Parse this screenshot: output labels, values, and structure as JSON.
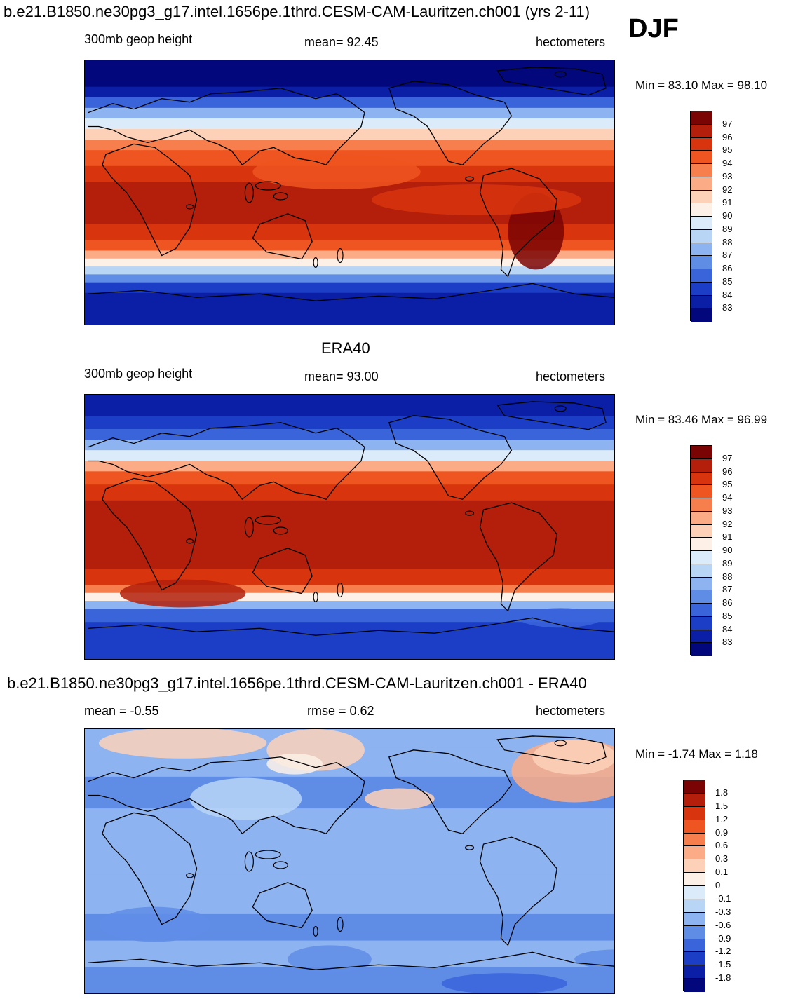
{
  "header": {
    "title": "b.e21.B1850.ne30pg3_g17.intel.1656pe.1thrd.CESM-CAM-Lauritzen.ch001 (yrs 2-11)",
    "season": "DJF"
  },
  "panels": [
    {
      "title": "",
      "left_label": "300mb geop height",
      "center_label": "mean=  92.45",
      "right_label": "hectometers",
      "minmax": "Min =  83.10 Max =  98.10",
      "colorbar": {
        "labels": [
          "97",
          "96",
          "95",
          "94",
          "93",
          "92",
          "91",
          "90",
          "89",
          "88",
          "87",
          "86",
          "85",
          "84",
          "83"
        ],
        "colors": [
          "#7a0403",
          "#b31f0a",
          "#d8340e",
          "#ee5520",
          "#f77f4d",
          "#fbab85",
          "#fdd1b8",
          "#fdf0e6",
          "#dcebfa",
          "#b9d5f6",
          "#8db3f0",
          "#5f8de6",
          "#3a64da",
          "#1c3ec6",
          "#0a1fa6",
          "#03077c"
        ]
      },
      "legend_extra": "",
      "map_field": "model",
      "season_badge": true
    },
    {
      "title": "ERA40",
      "left_label": "300mb geop height",
      "center_label": "mean=  93.00",
      "right_label": "hectometers",
      "minmax": "Min =  83.46 Max =  96.99",
      "colorbar": {
        "labels": [
          "97",
          "96",
          "95",
          "94",
          "93",
          "92",
          "91",
          "90",
          "89",
          "88",
          "87",
          "86",
          "85",
          "84",
          "83"
        ],
        "colors": [
          "#7a0403",
          "#b31f0a",
          "#d8340e",
          "#ee5520",
          "#f77f4d",
          "#fbab85",
          "#fdd1b8",
          "#fdf0e6",
          "#dcebfa",
          "#b9d5f6",
          "#8db3f0",
          "#5f8de6",
          "#3a64da",
          "#1c3ec6",
          "#0a1fa6",
          "#03077c"
        ]
      },
      "map_field": "obs"
    },
    {
      "title": "b.e21.B1850.ne30pg3_g17.intel.1656pe.1thrd.CESM-CAM-Lauritzen.ch001 - ERA40",
      "left_label": "mean =  -0.55",
      "center_label": "rmse =    0.62",
      "right_label": "hectometers",
      "minmax": "Min =  -1.74 Max =    1.18",
      "colorbar": {
        "labels": [
          "1.8",
          "1.5",
          "1.2",
          "0.9",
          "0.6",
          "0.3",
          "0.1",
          "0",
          "-0.1",
          "-0.3",
          "-0.6",
          "-0.9",
          "-1.2",
          "-1.5",
          "-1.8"
        ],
        "colors": [
          "#7a0403",
          "#b31f0a",
          "#d8340e",
          "#ee5520",
          "#f77f4d",
          "#fbab85",
          "#fdd1b8",
          "#fdf0e6",
          "#dcebfa",
          "#b9d5f6",
          "#8db3f0",
          "#5f8de6",
          "#3a64da",
          "#1c3ec6",
          "#0a1fa6",
          "#03077c"
        ]
      },
      "map_field": "diff"
    }
  ]
}
